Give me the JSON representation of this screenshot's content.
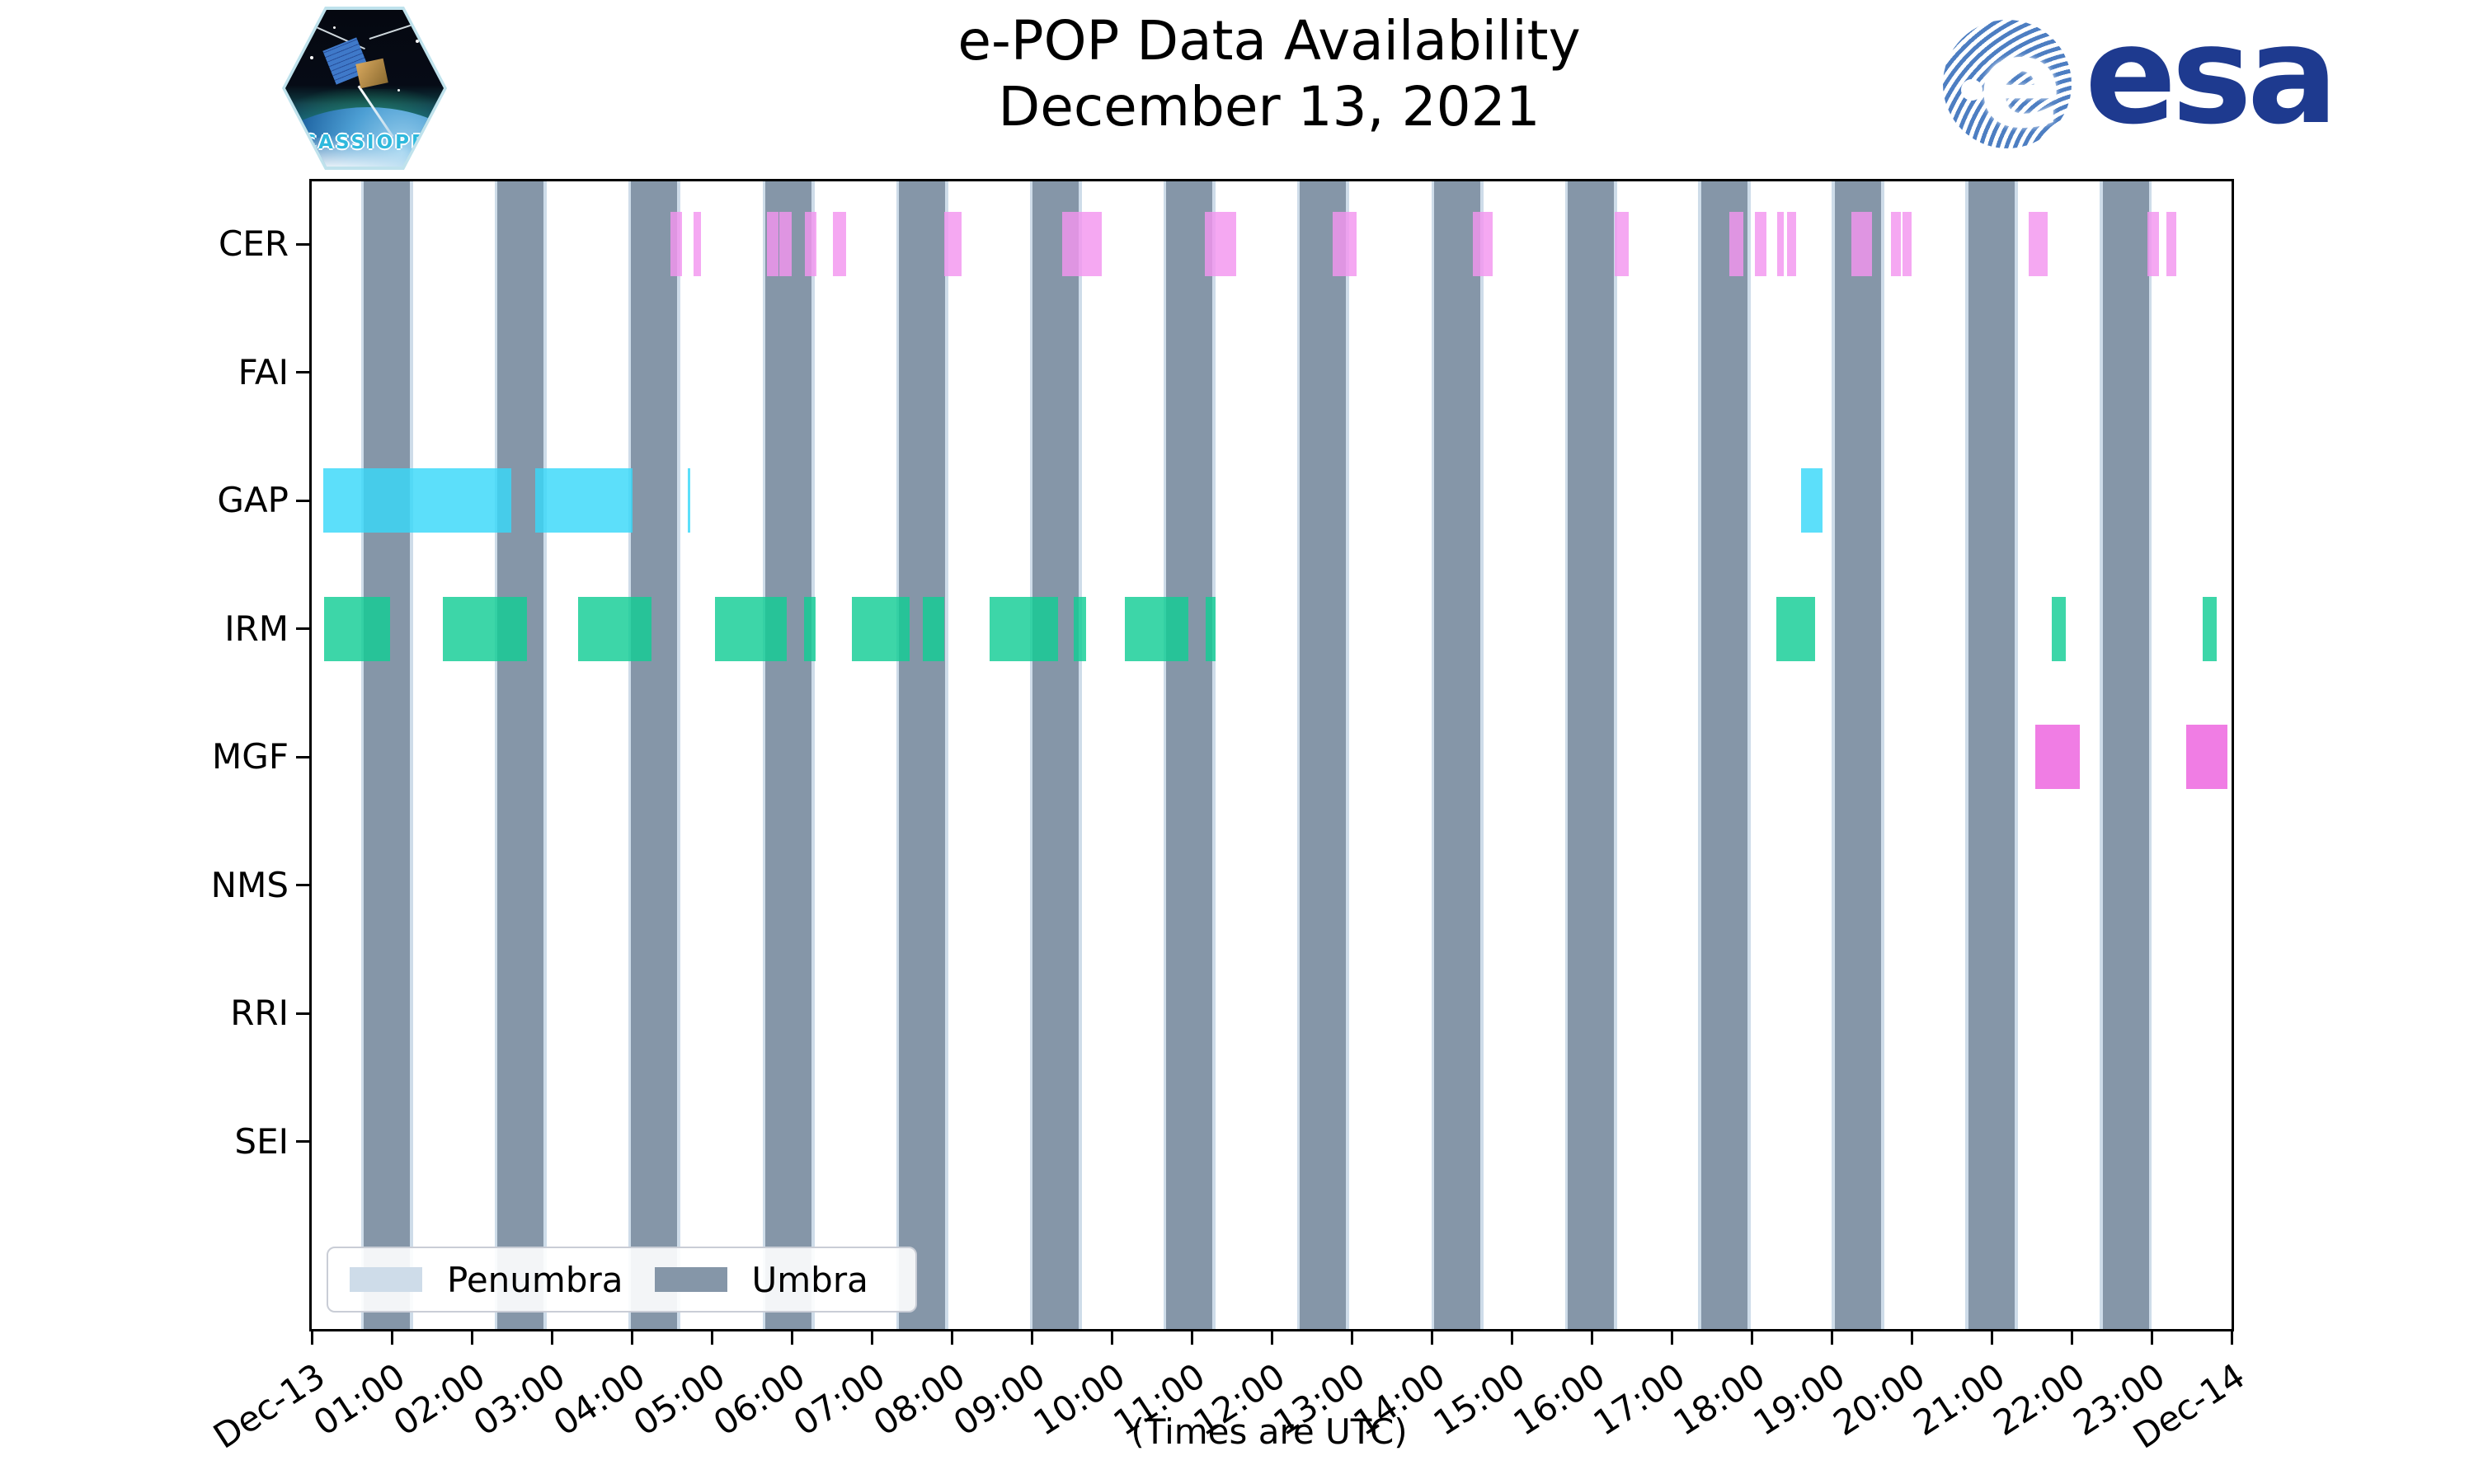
{
  "header": {
    "title": "e-POP Data Availability",
    "subtitle": "December 13, 2021",
    "cassiope_patch_label": "CASSIOPE",
    "esa_logo_text": "esa",
    "esa_logo_color": "#1e3a8f"
  },
  "chart_data": {
    "type": "bar",
    "subtype": "availability-timeline-broken-horizontal-bars",
    "title": "e-POP Data Availability",
    "subtitle": "December 13, 2021",
    "x_axis": {
      "footnote": "(Times are UTC)",
      "range_hours": [
        0,
        24
      ],
      "tick_labels": [
        "Dec-13",
        "01:00",
        "02:00",
        "03:00",
        "04:00",
        "05:00",
        "06:00",
        "07:00",
        "08:00",
        "09:00",
        "10:00",
        "11:00",
        "12:00",
        "13:00",
        "14:00",
        "15:00",
        "16:00",
        "17:00",
        "18:00",
        "19:00",
        "20:00",
        "21:00",
        "22:00",
        "23:00",
        "Dec-14"
      ],
      "tick_label_rotation_deg": -33
    },
    "y_axis": {
      "instruments": [
        "CER",
        "FAI",
        "GAP",
        "IRM",
        "MGF",
        "NMS",
        "RRI",
        "SEI"
      ]
    },
    "legend": {
      "position": "lower-left",
      "entries": [
        {
          "label": "Penumbra",
          "color": "#CEDCE9"
        },
        {
          "label": "Umbra",
          "color": "#8596A8"
        }
      ]
    },
    "eclipse": {
      "umbra_color": "#8596A8",
      "penumbra_color": "#CEDCE9",
      "penumbra_halfwidth_hours": 0.035,
      "umbra_intervals_hours": [
        [
          0.65,
          1.23
        ],
        [
          2.32,
          2.9
        ],
        [
          3.99,
          4.57
        ],
        [
          5.67,
          6.25
        ],
        [
          7.34,
          7.92
        ],
        [
          9.01,
          9.59
        ],
        [
          10.68,
          11.26
        ],
        [
          12.35,
          12.93
        ],
        [
          14.03,
          14.61
        ],
        [
          15.7,
          16.28
        ],
        [
          17.37,
          17.95
        ],
        [
          19.04,
          19.62
        ],
        [
          20.71,
          21.29
        ],
        [
          22.39,
          22.97
        ]
      ]
    },
    "bar_opacity": 0.82,
    "series": [
      {
        "instrument": "CER",
        "color": "#F395EF",
        "intervals_hours": [
          [
            4.48,
            4.63
          ],
          [
            4.77,
            4.87
          ],
          [
            5.69,
            5.84
          ],
          [
            5.85,
            6.0
          ],
          [
            6.16,
            6.31
          ],
          [
            6.52,
            6.68
          ],
          [
            7.91,
            8.12
          ],
          [
            9.38,
            9.88
          ],
          [
            11.16,
            11.56
          ],
          [
            12.76,
            13.06
          ],
          [
            14.52,
            14.76
          ],
          [
            16.29,
            16.46
          ],
          [
            17.72,
            17.9
          ],
          [
            18.04,
            18.19
          ],
          [
            18.32,
            18.4
          ],
          [
            18.44,
            18.56
          ],
          [
            19.25,
            19.51
          ],
          [
            19.74,
            19.87
          ],
          [
            19.89,
            20.0
          ],
          [
            21.46,
            21.7
          ],
          [
            22.95,
            23.09
          ],
          [
            23.19,
            23.31
          ]
        ]
      },
      {
        "instrument": "FAI",
        "color": null,
        "intervals_hours": []
      },
      {
        "instrument": "GAP",
        "color": "#38D8F9",
        "intervals_hours": [
          [
            0.14,
            2.49
          ],
          [
            2.79,
            4.01
          ],
          [
            4.7,
            4.73
          ],
          [
            18.62,
            18.89
          ]
        ]
      },
      {
        "instrument": "IRM",
        "color": "#12CD95",
        "intervals_hours": [
          [
            0.15,
            0.98
          ],
          [
            1.64,
            2.69
          ],
          [
            3.33,
            4.25
          ],
          [
            5.04,
            5.94
          ],
          [
            6.15,
            6.3
          ],
          [
            6.75,
            7.47
          ],
          [
            7.64,
            7.91
          ],
          [
            8.47,
            9.33
          ],
          [
            9.53,
            9.68
          ],
          [
            10.16,
            10.96
          ],
          [
            11.18,
            11.3
          ],
          [
            18.31,
            18.79
          ],
          [
            21.75,
            21.93
          ],
          [
            23.64,
            23.81
          ]
        ]
      },
      {
        "instrument": "MGF",
        "color": "#ED60DE",
        "intervals_hours": [
          [
            21.55,
            22.1
          ],
          [
            23.43,
            23.95
          ]
        ]
      },
      {
        "instrument": "NMS",
        "color": null,
        "intervals_hours": []
      },
      {
        "instrument": "RRI",
        "color": null,
        "intervals_hours": []
      },
      {
        "instrument": "SEI",
        "color": null,
        "intervals_hours": []
      }
    ]
  }
}
